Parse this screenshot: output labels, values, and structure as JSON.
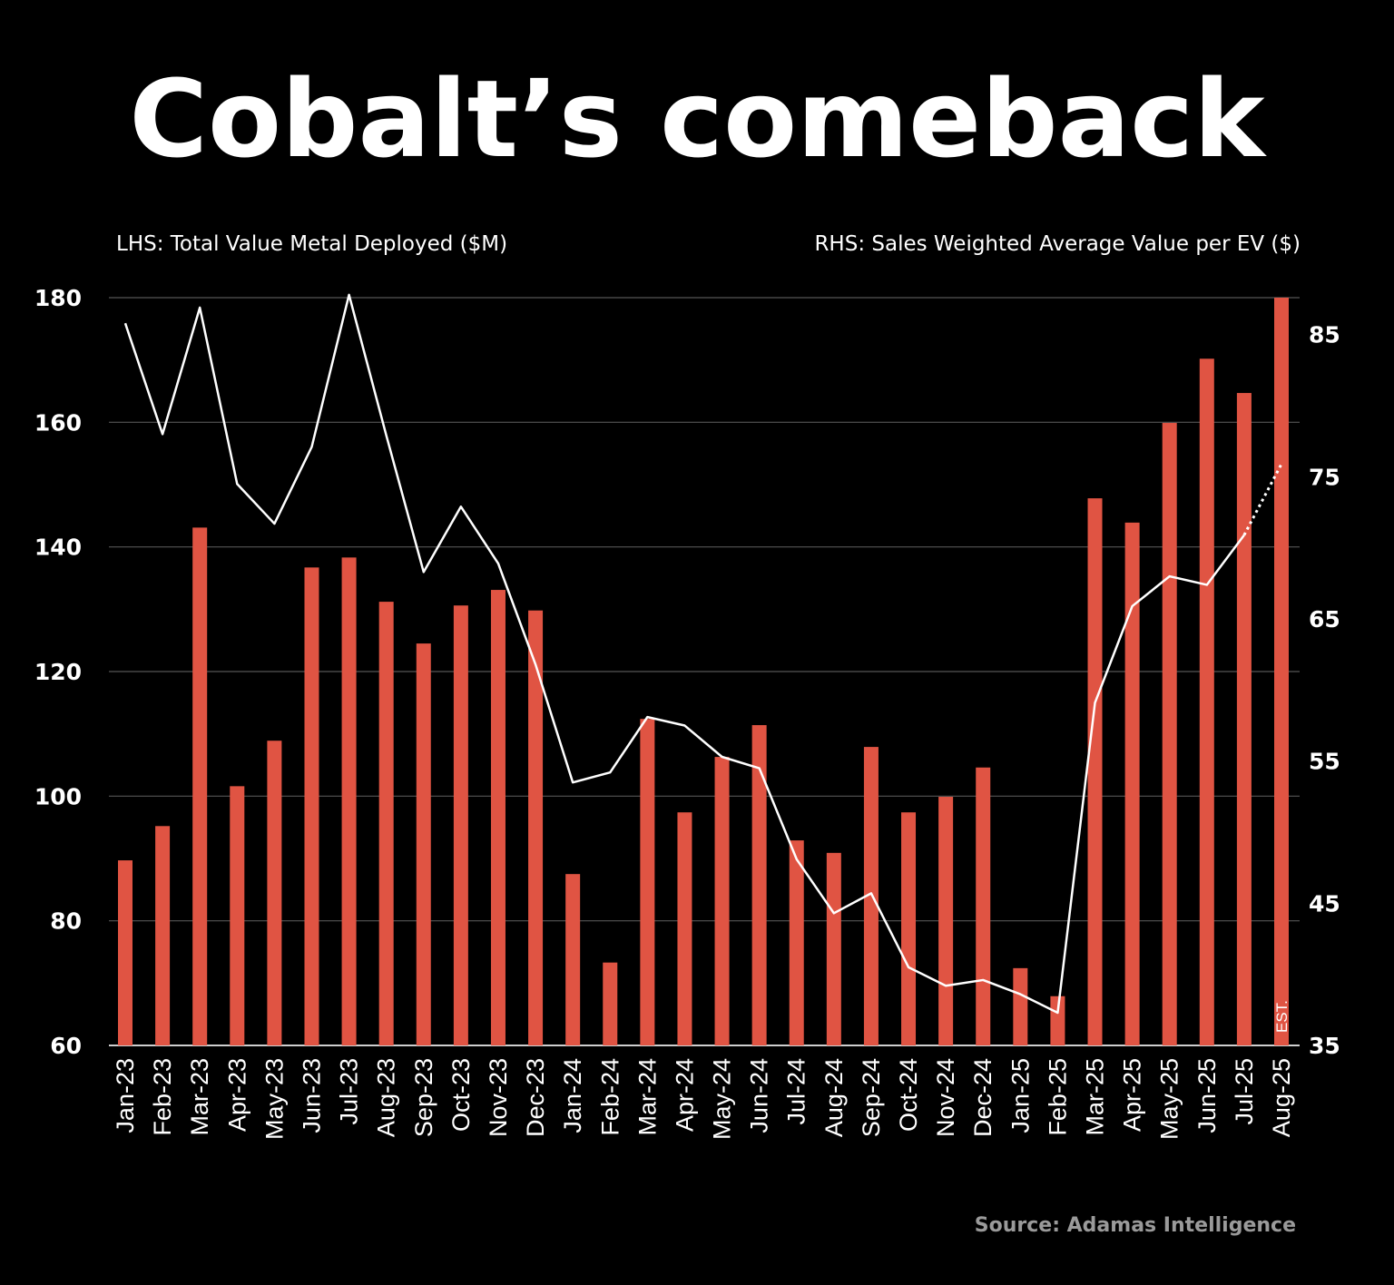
{
  "chart_data": {
    "type": "bar",
    "title": "Cobalt’s comeback",
    "source": "Source: Adamas Intelligence",
    "left_axis_label": "LHS: Total Value Metal Deployed ($M)",
    "right_axis_label": "RHS: Sales Weighted Average Value per EV ($)",
    "categories": [
      "Jan-23",
      "Feb-23",
      "Mar-23",
      "Apr-23",
      "May-23",
      "Jun-23",
      "Jul-23",
      "Aug-23",
      "Sep-23",
      "Oct-23",
      "Nov-23",
      "Dec-23",
      "Jan-24",
      "Feb-24",
      "Mar-24",
      "Apr-24",
      "May-24",
      "Jun-24",
      "Jul-24",
      "Aug-24",
      "Sep-24",
      "Oct-24",
      "Nov-24",
      "Dec-24",
      "Jan-25",
      "Feb-25",
      "Mar-25",
      "Apr-25",
      "May-25",
      "Jun-25",
      "Jul-25",
      "Aug-25"
    ],
    "ylim_left": [
      60,
      180
    ],
    "yticks_left": [
      60,
      80,
      100,
      120,
      140,
      160,
      180
    ],
    "ylim_right": [
      35,
      87.6
    ],
    "yticks_right": [
      35,
      45,
      55,
      65,
      75,
      85
    ],
    "grid": true,
    "series": [
      {
        "type": "bar",
        "axis": "left",
        "color": "#e05443",
        "values": [
          89.7,
          95.2,
          143.1,
          101.6,
          108.9,
          136.7,
          138.3,
          131.2,
          124.5,
          130.6,
          133.1,
          129.8,
          87.5,
          73.3,
          112.4,
          97.4,
          106.3,
          111.4,
          92.9,
          90.9,
          107.9,
          97.4,
          99.9,
          104.6,
          72.4,
          67.9,
          147.8,
          143.9,
          159.9,
          170.2,
          164.7,
          180
        ]
      },
      {
        "type": "line",
        "axis": "right",
        "color": "#ffffff",
        "values": [
          85.8,
          78.0,
          86.9,
          74.5,
          71.7,
          77.1,
          87.8,
          77.9,
          68.3,
          72.9,
          68.9,
          61.8,
          53.5,
          54.2,
          58.1,
          57.5,
          55.3,
          54.5,
          48.1,
          44.3,
          45.7,
          40.5,
          39.2,
          39.6,
          38.6,
          37.3,
          59.1,
          65.9,
          68.0,
          67.4,
          70.9,
          75.9
        ],
        "estimated_last_point": true
      }
    ],
    "annotations": [
      {
        "category": "Aug-25",
        "text": "EST."
      }
    ]
  }
}
